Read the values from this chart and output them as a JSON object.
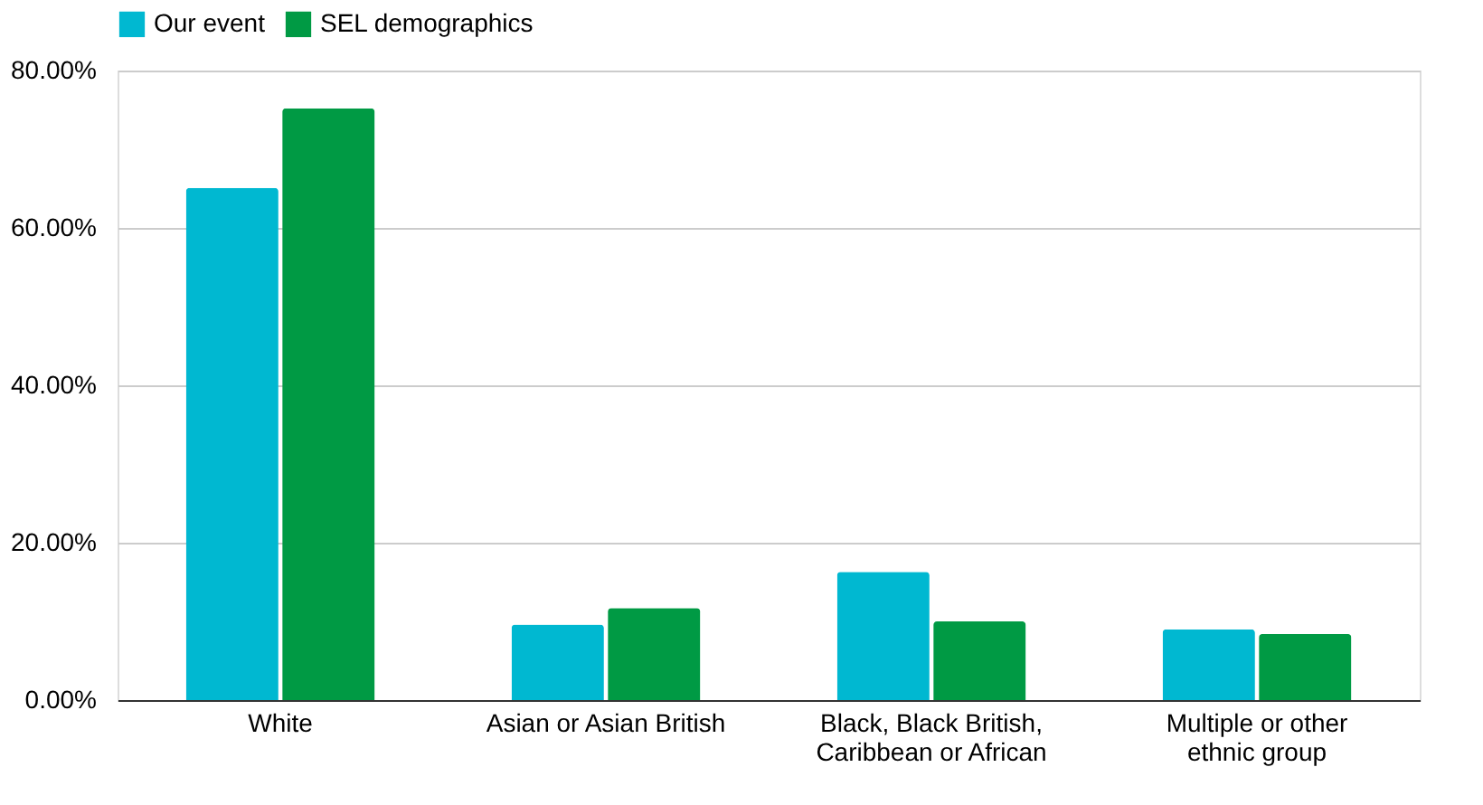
{
  "chart_data": {
    "type": "bar",
    "categories": [
      "White",
      "Asian or Asian British",
      "Black, Black British, Caribbean or African",
      "Multiple or other ethnic group"
    ],
    "series": [
      {
        "name": "Our event",
        "color": "#00b8d1",
        "values": [
          65.1,
          9.6,
          16.3,
          9.0
        ]
      },
      {
        "name": "SEL demographics",
        "color": "#009a44",
        "values": [
          75.2,
          11.7,
          10.0,
          8.4
        ]
      }
    ],
    "ylim": [
      0,
      80
    ],
    "yticks": [
      {
        "value": 0,
        "label": "0.00%"
      },
      {
        "value": 20,
        "label": "20.00%"
      },
      {
        "value": 40,
        "label": "40.00%"
      },
      {
        "value": 60,
        "label": "60.00%"
      },
      {
        "value": 80,
        "label": "80.00%"
      }
    ],
    "grid": "y",
    "legend": "top"
  }
}
